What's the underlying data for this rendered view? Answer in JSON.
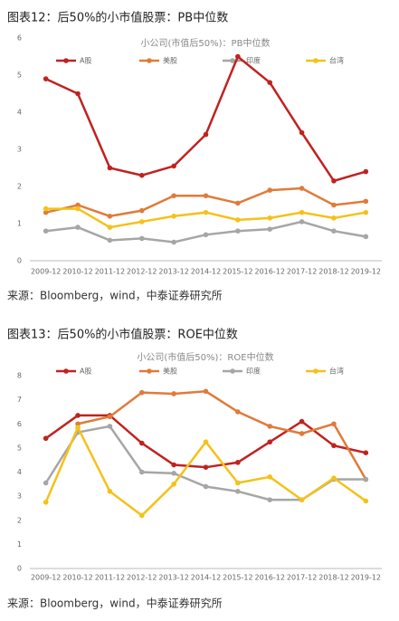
{
  "chart_data": [
    {
      "type": "line",
      "caption": "图表12：后50%的小市值股票：PB中位数",
      "title": "小公司(市值后50%)：PB中位数",
      "source": "来源：Bloomberg，wind，中泰证券研究所",
      "categories": [
        "2009-12",
        "2010-12",
        "2011-12",
        "2012-12",
        "2013-12",
        "2014-12",
        "2015-12",
        "2016-12",
        "2017-12",
        "2018-12",
        "2019-12"
      ],
      "series": [
        {
          "name": "A股",
          "color": "#c0221f",
          "values": [
            4.9,
            4.5,
            2.5,
            2.3,
            2.55,
            3.4,
            5.5,
            4.8,
            3.45,
            2.15,
            2.4
          ]
        },
        {
          "name": "美股",
          "color": "#e07b39",
          "values": [
            1.3,
            1.5,
            1.2,
            1.35,
            1.75,
            1.75,
            1.55,
            1.9,
            1.95,
            1.5,
            1.6
          ]
        },
        {
          "name": "印度",
          "color": "#a6a6a6",
          "values": [
            0.8,
            0.9,
            0.55,
            0.6,
            0.5,
            0.7,
            0.8,
            0.85,
            1.05,
            0.8,
            0.65
          ]
        },
        {
          "name": "台湾",
          "color": "#f5c11a",
          "values": [
            1.4,
            1.4,
            0.9,
            1.05,
            1.2,
            1.3,
            1.1,
            1.15,
            1.3,
            1.15,
            1.3
          ]
        }
      ],
      "ylim": [
        0,
        6
      ],
      "yticks": [
        0,
        1,
        2,
        3,
        4,
        5,
        6
      ],
      "grid": false
    },
    {
      "type": "line",
      "caption": "图表13：后50%的小市值股票：ROE中位数",
      "title": "小公司(市值后50%)：ROE中位数",
      "source": "来源：Bloomberg，wind，中泰证券研究所",
      "categories": [
        "2009-12",
        "2010-12",
        "2011-12",
        "2012-12",
        "2013-12",
        "2014-12",
        "2015-12",
        "2016-12",
        "2017-12",
        "2018-12",
        "2019-12"
      ],
      "series": [
        {
          "name": "A股",
          "color": "#c0221f",
          "values": [
            5.4,
            6.35,
            6.35,
            5.2,
            4.3,
            4.2,
            4.4,
            5.25,
            6.1,
            5.1,
            4.8
          ]
        },
        {
          "name": "美股",
          "color": "#e07b39",
          "values": [
            null,
            6.0,
            6.3,
            7.3,
            7.25,
            7.35,
            6.5,
            5.9,
            5.6,
            6.0,
            3.7
          ]
        },
        {
          "name": "印度",
          "color": "#a6a6a6",
          "values": [
            3.55,
            5.65,
            5.9,
            4.0,
            3.95,
            3.4,
            3.2,
            2.85,
            2.85,
            3.7,
            3.7
          ]
        },
        {
          "name": "台湾",
          "color": "#f5c11a",
          "values": [
            2.75,
            5.85,
            3.2,
            2.2,
            3.5,
            5.25,
            3.55,
            3.8,
            2.85,
            3.75,
            2.8
          ]
        }
      ],
      "ylim": [
        0,
        8
      ],
      "yticks": [
        0,
        1,
        2,
        3,
        4,
        5,
        6,
        7,
        8
      ],
      "grid": false
    }
  ]
}
